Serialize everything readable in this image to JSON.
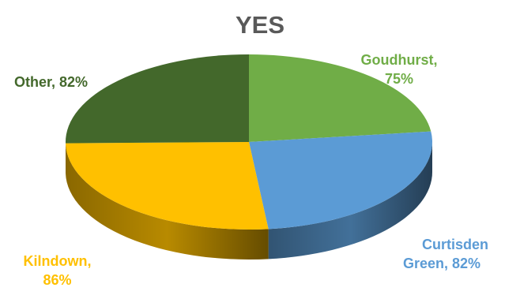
{
  "chart_data": {
    "type": "pie",
    "title": "YES",
    "style": "3d",
    "slices": [
      {
        "name": "Goudhurst",
        "label": "Goudhurst, 75%",
        "value": 75,
        "color": "#70AD47"
      },
      {
        "name": "Curtisden Green",
        "label": "Curtisden Green, 82%",
        "value": 82,
        "color": "#5B9BD5"
      },
      {
        "name": "Kilndown",
        "label": "Kilndown, 86%",
        "value": 86,
        "color": "#FFC000"
      },
      {
        "name": "Other",
        "label": "Other, 82%",
        "value": 82,
        "color": "#43682B"
      }
    ],
    "legend": "none"
  },
  "labels": {
    "goudhurst_line1": "Goudhurst,",
    "goudhurst_line2": "75%",
    "curtisden_line1": "Curtisden",
    "curtisden_line2": "Green, 82%",
    "kilndown_line1": "Kilndown,",
    "kilndown_line2": "86%",
    "other_line1": "Other, 82%"
  }
}
